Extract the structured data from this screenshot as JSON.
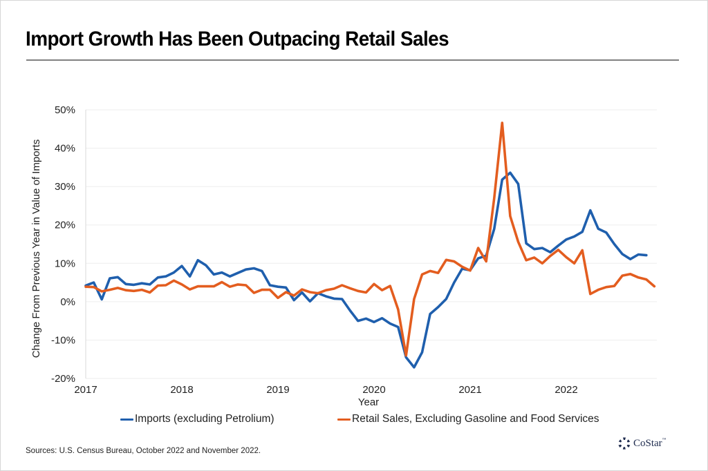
{
  "title": "Import Growth Has Been Outpacing Retail Sales",
  "sources": "Sources: U.S. Census Bureau, October 2022 and November 2022.",
  "logo": {
    "text": "CoStar",
    "tm": "™",
    "icon": "costar-star-icon"
  },
  "colors": {
    "imports": "#1f5fad",
    "retail": "#e35d1f",
    "grid": "#eeeeee",
    "rule": "#808080"
  },
  "chart_data": {
    "type": "line",
    "title": "Import Growth Has Been Outpacing Retail Sales",
    "xlabel": "Year",
    "ylabel": "Change From Previous Year in Value of Imports",
    "ylim": [
      -20,
      50
    ],
    "yticks": [
      -20,
      -10,
      0,
      10,
      20,
      30,
      40,
      50
    ],
    "ytick_labels": [
      "-20%",
      "-10%",
      "0%",
      "10%",
      "20%",
      "30%",
      "40%",
      "50%"
    ],
    "xlim": [
      "2017-01",
      "2023-01"
    ],
    "xticks": [
      2017,
      2018,
      2019,
      2020,
      2021,
      2022
    ],
    "xtick_labels": [
      "2017",
      "2018",
      "2019",
      "2020",
      "2021",
      "2022"
    ],
    "x_start": "2017-01",
    "x_frequency": "monthly",
    "grid": true,
    "legend_position": "bottom",
    "series": [
      {
        "name": "Imports (excluding Petrolium)",
        "color": "#1f5fad",
        "values": [
          4.2,
          5.0,
          0.6,
          6.1,
          6.4,
          4.6,
          4.4,
          4.8,
          4.5,
          6.3,
          6.6,
          7.6,
          9.3,
          6.6,
          10.8,
          9.5,
          7.1,
          7.6,
          6.6,
          7.5,
          8.4,
          8.7,
          8.0,
          4.3,
          3.9,
          3.7,
          0.4,
          2.4,
          0.1,
          2.2,
          1.4,
          0.8,
          0.7,
          -2.3,
          -5.0,
          -4.4,
          -5.3,
          -4.3,
          -5.7,
          -6.6,
          -14.5,
          -17.1,
          -13.2,
          -3.2,
          -1.4,
          0.7,
          5.0,
          8.6,
          8.2,
          11.3,
          12.0,
          19.0,
          31.8,
          33.6,
          30.7,
          15.2,
          13.7,
          14.0,
          12.9,
          14.6,
          16.2,
          17.0,
          18.2,
          23.8,
          19.0,
          18.0,
          15.0,
          12.4,
          11.1,
          12.3,
          12.1
        ]
      },
      {
        "name": "Retail Sales, Excluding Gasoline and Food Services",
        "color": "#e35d1f",
        "values": [
          3.9,
          3.8,
          2.7,
          3.1,
          3.6,
          3.0,
          2.8,
          3.1,
          2.4,
          4.2,
          4.3,
          5.5,
          4.5,
          3.2,
          4.0,
          4.0,
          4.0,
          5.1,
          3.9,
          4.5,
          4.3,
          2.3,
          3.1,
          3.1,
          1.0,
          2.5,
          1.6,
          3.2,
          2.5,
          2.2,
          3.0,
          3.4,
          4.3,
          3.5,
          2.8,
          2.4,
          4.6,
          3.0,
          4.1,
          -2.0,
          -14.0,
          0.7,
          7.1,
          8.0,
          7.5,
          10.9,
          10.5,
          9.1,
          8.1,
          14.0,
          10.5,
          27.0,
          46.6,
          22.3,
          15.6,
          10.8,
          11.5,
          10.0,
          11.9,
          13.5,
          11.6,
          10.0,
          13.4,
          2.0,
          3.1,
          3.8,
          4.1,
          6.8,
          7.2,
          6.3,
          5.8,
          4.0
        ]
      }
    ]
  }
}
